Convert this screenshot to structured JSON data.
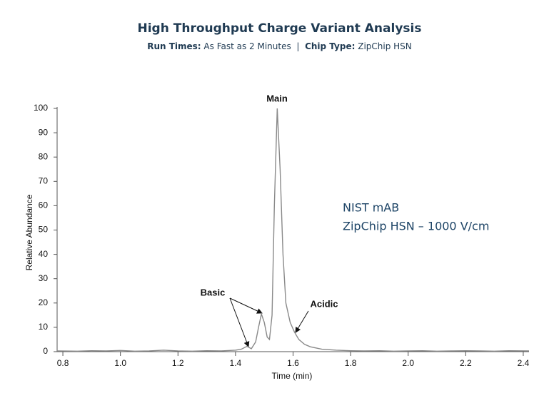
{
  "chart_data": {
    "type": "line",
    "title": "High Throughput Charge Variant Analysis",
    "subtitle": [
      {
        "label": "Run Times:",
        "text": "As Fast as 2 Minutes"
      },
      {
        "label": "Chip Type:",
        "text": "ZipChip HSN"
      }
    ],
    "subtitle_separator": "|",
    "x_label": "Time (min)",
    "y_label": "Relative Abundance",
    "annotations": [
      "Main",
      "Basic",
      "Acidic"
    ],
    "note": [
      "NIST mAB",
      "ZipChip HSN – 1000 V/cm"
    ],
    "color": "#8a8a8a",
    "x": [
      0.78,
      0.85,
      0.9,
      0.95,
      1.0,
      1.05,
      1.1,
      1.15,
      1.2,
      1.25,
      1.3,
      1.35,
      1.4,
      1.42,
      1.44,
      1.455,
      1.47,
      1.48,
      1.49,
      1.5,
      1.51,
      1.518,
      1.527,
      1.535,
      1.545,
      1.555,
      1.565,
      1.575,
      1.59,
      1.605,
      1.62,
      1.64,
      1.66,
      1.7,
      1.75,
      1.8,
      1.85,
      1.9,
      1.95,
      2.0,
      2.05,
      2.1,
      2.15,
      2.2,
      2.25,
      2.3,
      2.35,
      2.42
    ],
    "values": [
      0.3,
      0.2,
      0.4,
      0.3,
      0.5,
      0.2,
      0.3,
      0.6,
      0.3,
      0.2,
      0.4,
      0.3,
      0.6,
      1.0,
      2.2,
      1.2,
      4,
      10,
      15.5,
      12,
      6,
      5,
      15,
      60,
      100,
      75,
      40,
      20,
      12,
      8,
      5,
      3,
      2,
      1,
      0.6,
      0.4,
      0.3,
      0.4,
      0.2,
      0.3,
      0.4,
      0.2,
      0.3,
      0.4,
      0.3,
      0.2,
      0.4,
      0.3
    ],
    "xlim": [
      0.78,
      2.42
    ],
    "ylim": [
      0,
      100
    ],
    "xticks": [
      0.8,
      {
        "value": 1,
        "label": "1.0"
      },
      1.2,
      1.4,
      1.6,
      1.8,
      {
        "value": 2,
        "label": "2.0"
      },
      2.2,
      2.4
    ],
    "yticks": [
      0,
      10,
      20,
      30,
      40,
      50,
      60,
      70,
      80,
      90,
      100
    ]
  }
}
